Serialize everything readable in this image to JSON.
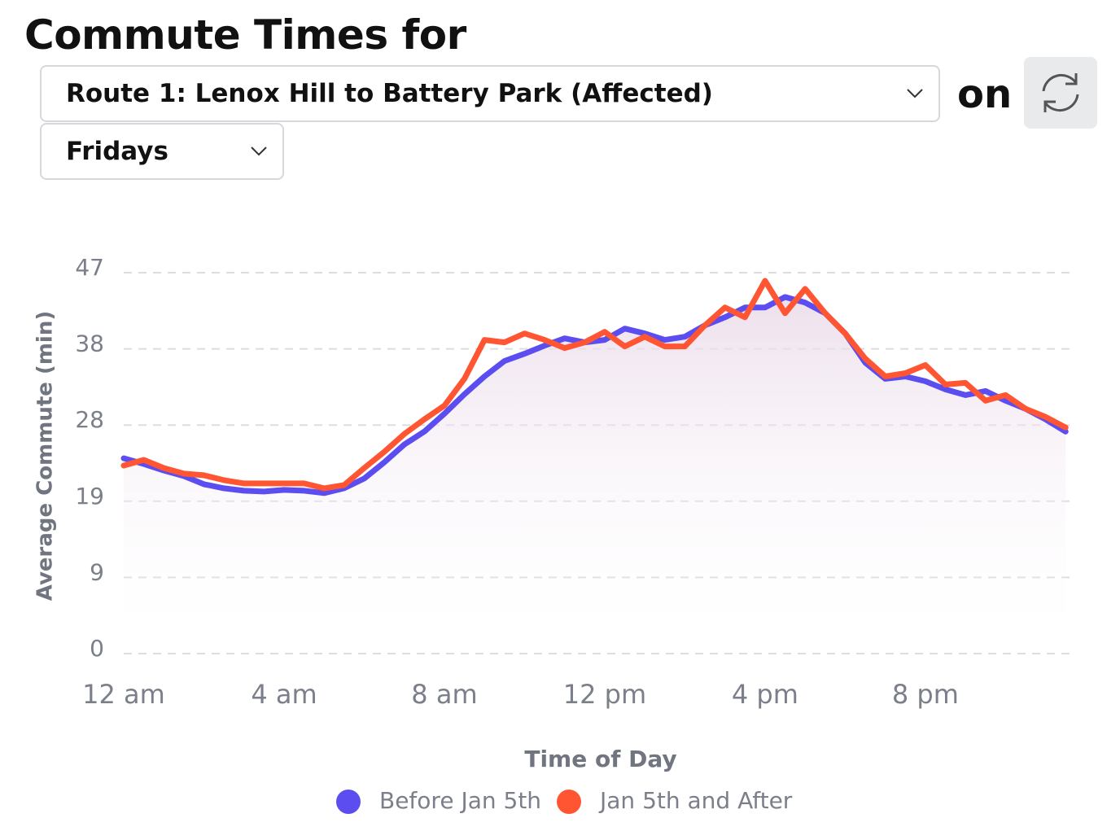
{
  "header": {
    "title": "Commute Times for",
    "route_select": "Route 1: Lenox Hill to Battery Park (Affected)",
    "on": "on",
    "day_select": "Fridays"
  },
  "chart_data": {
    "type": "line",
    "xlabel": "Time of Day",
    "ylabel": "Average Commute (min)",
    "x": [
      0,
      0.5,
      1,
      1.5,
      2,
      2.5,
      3,
      3.5,
      4,
      4.5,
      5,
      5.5,
      6,
      6.5,
      7,
      7.5,
      8,
      8.5,
      9,
      9.5,
      10,
      10.5,
      11,
      11.5,
      12,
      12.5,
      13,
      13.5,
      14,
      14.5,
      15,
      15.5,
      16,
      16.5,
      17,
      17.5,
      18,
      18.5,
      19,
      19.5,
      20,
      20.5,
      21,
      21.5,
      22,
      22.5,
      23,
      23.5
    ],
    "series": [
      {
        "name": "Before Jan 5th",
        "color": "#5b4df0",
        "values": [
          24.1,
          23.4,
          22.6,
          21.9,
          20.9,
          20.4,
          20.1,
          20.0,
          20.2,
          20.1,
          19.8,
          20.4,
          21.6,
          23.6,
          25.8,
          27.4,
          29.6,
          32.0,
          34.2,
          36.1,
          37.0,
          38.0,
          38.9,
          38.4,
          38.7,
          40.1,
          39.5,
          38.7,
          39.1,
          40.5,
          41.5,
          42.7,
          42.7,
          44.0,
          43.3,
          42.0,
          39.5,
          35.9,
          33.9,
          34.2,
          33.6,
          32.6,
          31.9,
          32.4,
          31.2,
          30.2,
          28.9,
          27.4
        ]
      },
      {
        "name": "Jan 5th and After",
        "color": "#ff5533",
        "values": [
          23.2,
          23.9,
          22.9,
          22.2,
          22.0,
          21.4,
          21.0,
          21.0,
          21.0,
          21.0,
          20.4,
          20.8,
          22.9,
          24.9,
          27.1,
          28.9,
          30.6,
          33.9,
          38.7,
          38.4,
          39.5,
          38.7,
          37.7,
          38.4,
          39.7,
          37.9,
          39.1,
          37.9,
          37.9,
          40.5,
          42.7,
          41.5,
          46.0,
          42.0,
          45.0,
          42.0,
          39.5,
          36.4,
          34.2,
          34.6,
          35.6,
          33.2,
          33.4,
          31.2,
          31.9,
          30.2,
          29.2,
          27.9
        ]
      }
    ],
    "xlim": [
      0,
      23.82
    ],
    "xticks": [
      {
        "value": 0,
        "label": "12 am"
      },
      {
        "value": 4,
        "label": "4 am"
      },
      {
        "value": 8,
        "label": "8 am"
      },
      {
        "value": 12,
        "label": "12 pm"
      },
      {
        "value": 16,
        "label": "4 pm"
      },
      {
        "value": 20,
        "label": "8 pm"
      }
    ],
    "ylim": [
      0,
      47
    ],
    "yticks": [
      0,
      {
        "value": 9.4,
        "label": "9"
      },
      {
        "value": 18.8,
        "label": "19"
      },
      {
        "value": 28.2,
        "label": "28"
      },
      {
        "value": 37.6,
        "label": "38"
      },
      47
    ],
    "grid": true
  }
}
